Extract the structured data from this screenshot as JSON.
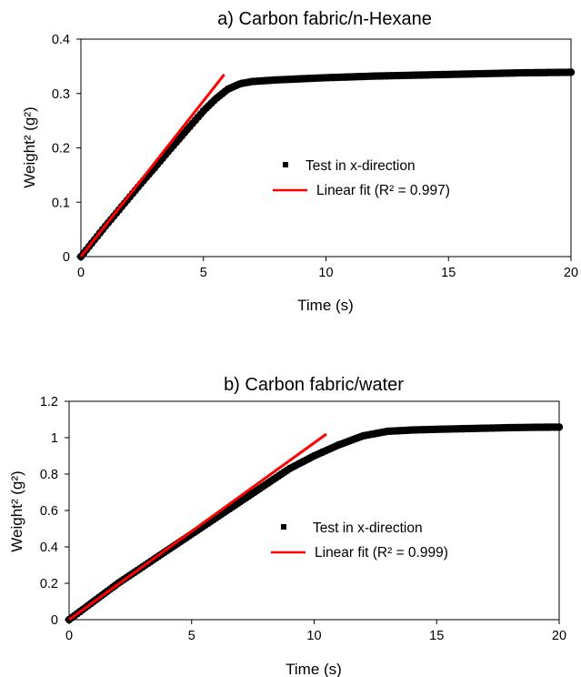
{
  "chart_data": [
    {
      "type": "scatter",
      "title": "a) Carbon fabric/n-Hexane",
      "xlabel": "Time (s)",
      "ylabel": "Weight² (g²)",
      "xlim": [
        0,
        20
      ],
      "ylim": [
        0,
        0.4
      ],
      "xticks": [
        "0",
        "5",
        "10",
        "15",
        "20"
      ],
      "yticks": [
        "0",
        "0.1",
        "0.2",
        "0.3",
        "0.4"
      ],
      "grid": false,
      "legend_position": "center-right",
      "series": [
        {
          "name": "Test in x-direction",
          "kind": "points",
          "color": "#000000",
          "points": [
            [
              0,
              0
            ],
            [
              0.5,
              0.028
            ],
            [
              1,
              0.056
            ],
            [
              1.5,
              0.083
            ],
            [
              2,
              0.11
            ],
            [
              2.5,
              0.137
            ],
            [
              3,
              0.163
            ],
            [
              3.5,
              0.19
            ],
            [
              4,
              0.216
            ],
            [
              4.5,
              0.242
            ],
            [
              5,
              0.268
            ],
            [
              5.5,
              0.29
            ],
            [
              6,
              0.308
            ],
            [
              6.5,
              0.318
            ],
            [
              7,
              0.322
            ],
            [
              8,
              0.325
            ],
            [
              9,
              0.327
            ],
            [
              10,
              0.329
            ],
            [
              12,
              0.332
            ],
            [
              14,
              0.334
            ],
            [
              16,
              0.336
            ],
            [
              18,
              0.338
            ],
            [
              20,
              0.339
            ]
          ]
        },
        {
          "name": "Linear fit (R² = 0.997)",
          "kind": "line",
          "color": "#ff0000",
          "points": [
            [
              0,
              0
            ],
            [
              5.85,
              0.335
            ]
          ]
        }
      ]
    },
    {
      "type": "scatter",
      "title": "b) Carbon fabric/water",
      "xlabel": "Time (s)",
      "ylabel": "Weight² (g²)",
      "xlim": [
        0,
        20
      ],
      "ylim": [
        0,
        1.2
      ],
      "xticks": [
        "0",
        "5",
        "10",
        "15",
        "20"
      ],
      "yticks": [
        "0",
        "0.2",
        "0.4",
        "0.6",
        "0.8",
        "1",
        "1.2"
      ],
      "grid": false,
      "legend_position": "center-right",
      "series": [
        {
          "name": "Test in x-direction",
          "kind": "points",
          "color": "#000000",
          "points": [
            [
              0,
              0
            ],
            [
              1,
              0.1
            ],
            [
              2,
              0.2
            ],
            [
              3,
              0.29
            ],
            [
              4,
              0.38
            ],
            [
              5,
              0.47
            ],
            [
              6,
              0.56
            ],
            [
              7,
              0.65
            ],
            [
              8,
              0.74
            ],
            [
              9,
              0.83
            ],
            [
              10,
              0.9
            ],
            [
              11,
              0.96
            ],
            [
              12,
              1.01
            ],
            [
              13,
              1.035
            ],
            [
              14,
              1.042
            ],
            [
              15,
              1.046
            ],
            [
              16,
              1.049
            ],
            [
              17,
              1.052
            ],
            [
              18,
              1.055
            ],
            [
              19,
              1.057
            ],
            [
              20,
              1.058
            ]
          ]
        },
        {
          "name": "Linear fit (R² = 0.999)",
          "kind": "line",
          "color": "#ff0000",
          "points": [
            [
              0,
              0
            ],
            [
              10.5,
              1.02
            ]
          ]
        }
      ]
    }
  ]
}
